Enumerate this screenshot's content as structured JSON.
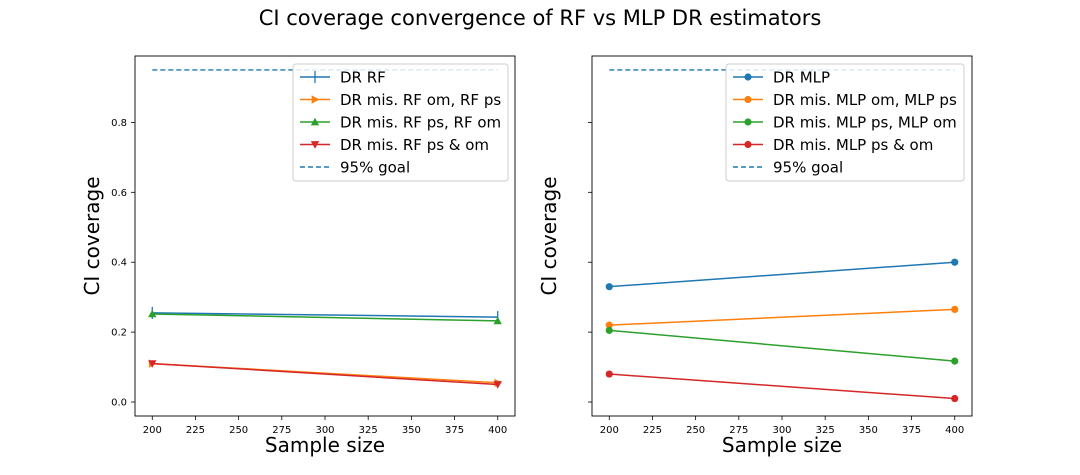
{
  "figure": {
    "title": "CI coverage convergence of RF vs MLP DR estimators"
  },
  "chart_data": [
    {
      "type": "line",
      "xlabel": "Sample size",
      "ylabel": "CI coverage",
      "xlim": [
        190,
        410
      ],
      "ylim": [
        -0.04,
        0.99
      ],
      "xticks": [
        "200",
        "225",
        "250",
        "275",
        "300",
        "325",
        "350",
        "375",
        "400"
      ],
      "yticks": [
        "0.0",
        "0.2",
        "0.4",
        "0.6",
        "0.8"
      ],
      "show_ytick_labels": true,
      "legend_position": "top-right",
      "x": [
        200,
        400
      ],
      "series": [
        {
          "name": "DR RF",
          "values": [
            0.255,
            0.243
          ],
          "color": "#1f77b4",
          "marker": "vline"
        },
        {
          "name": "DR mis. RF om, RF ps",
          "values": [
            0.11,
            0.055
          ],
          "color": "#ff7f0e",
          "marker": "triangle-right"
        },
        {
          "name": "DR mis. RF ps, RF om",
          "values": [
            0.252,
            0.232
          ],
          "color": "#2ca02c",
          "marker": "triangle-up"
        },
        {
          "name": "DR mis. RF ps & om",
          "values": [
            0.11,
            0.05
          ],
          "color": "#d62728",
          "marker": "triangle-down"
        }
      ],
      "goal": {
        "name": "95% goal",
        "value": 0.95,
        "color": "#1f77b4"
      }
    },
    {
      "type": "line",
      "xlabel": "Sample size",
      "ylabel": "CI coverage",
      "xlim": [
        190,
        410
      ],
      "ylim": [
        -0.04,
        0.99
      ],
      "xticks": [
        "200",
        "225",
        "250",
        "275",
        "300",
        "325",
        "350",
        "375",
        "400"
      ],
      "yticks": [
        "0.0",
        "0.2",
        "0.4",
        "0.6",
        "0.8"
      ],
      "show_ytick_labels": false,
      "legend_position": "top-right",
      "x": [
        200,
        400
      ],
      "series": [
        {
          "name": "DR MLP",
          "values": [
            0.33,
            0.4
          ],
          "color": "#1f77b4",
          "marker": "circle"
        },
        {
          "name": "DR mis. MLP om, MLP ps",
          "values": [
            0.22,
            0.265
          ],
          "color": "#ff7f0e",
          "marker": "circle"
        },
        {
          "name": "DR mis. MLP ps, MLP om",
          "values": [
            0.205,
            0.117
          ],
          "color": "#2ca02c",
          "marker": "circle"
        },
        {
          "name": "DR mis. MLP ps & om",
          "values": [
            0.08,
            0.01
          ],
          "color": "#d62728",
          "marker": "circle"
        }
      ],
      "goal": {
        "name": "95% goal",
        "value": 0.95,
        "color": "#1f77b4"
      }
    }
  ]
}
